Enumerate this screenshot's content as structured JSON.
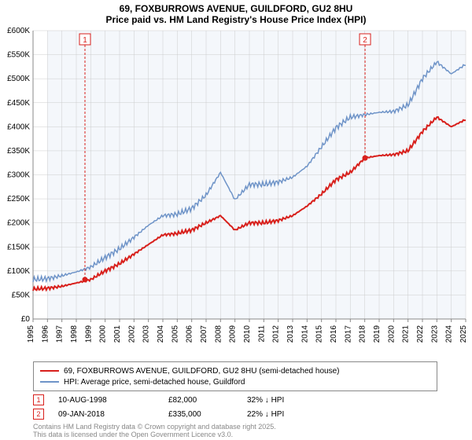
{
  "title": "69, FOXBURROWS AVENUE, GUILDFORD, GU2 8HU",
  "subtitle": "Price paid vs. HM Land Registry's House Price Index (HPI)",
  "chart": {
    "type": "line",
    "background_color": "#ffffff",
    "plot_background_color": "#f4f7fb",
    "grid_color": "#cccccc",
    "axis_color": "#888888",
    "tick_font_size": 10,
    "x_years": [
      1995,
      1996,
      1997,
      1998,
      1999,
      2000,
      2001,
      2002,
      2003,
      2004,
      2005,
      2006,
      2007,
      2008,
      2009,
      2010,
      2011,
      2012,
      2013,
      2014,
      2015,
      2016,
      2017,
      2018,
      2019,
      2020,
      2021,
      2022,
      2023,
      2024,
      2025
    ],
    "y_min": 0,
    "y_max": 600,
    "y_tick_step": 50,
    "y_tick_labels": [
      "£0",
      "£50K",
      "£100K",
      "£150K",
      "£200K",
      "£250K",
      "£300K",
      "£350K",
      "£400K",
      "£450K",
      "£500K",
      "£550K",
      "£600K"
    ],
    "series": [
      {
        "name": "hpi",
        "color": "#6f94c8",
        "line_width": 1.5,
        "values_k": [
          82,
          84,
          90,
          98,
          108,
          128,
          146,
          170,
          195,
          215,
          218,
          230,
          258,
          305,
          248,
          280,
          280,
          285,
          295,
          318,
          358,
          398,
          420,
          425,
          430,
          432,
          445,
          500,
          535,
          510,
          530
        ]
      },
      {
        "name": "property",
        "color": "#d8201c",
        "line_width": 2,
        "values_k": [
          62,
          64,
          68,
          75,
          82,
          100,
          115,
          135,
          155,
          175,
          178,
          185,
          200,
          215,
          185,
          200,
          200,
          205,
          215,
          235,
          260,
          290,
          305,
          335,
          340,
          342,
          350,
          390,
          420,
          400,
          415
        ]
      }
    ],
    "sale_markers": [
      {
        "label": "1",
        "year": 1998.6,
        "value_k": 82,
        "flag_y": 570
      },
      {
        "label": "2",
        "year": 2018.02,
        "value_k": 335,
        "flag_y": 570
      }
    ]
  },
  "legend": {
    "items": [
      {
        "color": "#d8201c",
        "width": 2,
        "text": "69, FOXBURROWS AVENUE, GUILDFORD, GU2 8HU (semi-detached house)"
      },
      {
        "color": "#6f94c8",
        "width": 2,
        "text": "HPI: Average price, semi-detached house, Guildford"
      }
    ]
  },
  "sales": [
    {
      "marker": "1",
      "date": "10-AUG-1998",
      "price": "£82,000",
      "ratio": "32% ↓ HPI"
    },
    {
      "marker": "2",
      "date": "09-JAN-2018",
      "price": "£335,000",
      "ratio": "22% ↓ HPI"
    }
  ],
  "attribution_line1": "Contains HM Land Registry data © Crown copyright and database right 2025.",
  "attribution_line2": "This data is licensed under the Open Government Licence v3.0."
}
